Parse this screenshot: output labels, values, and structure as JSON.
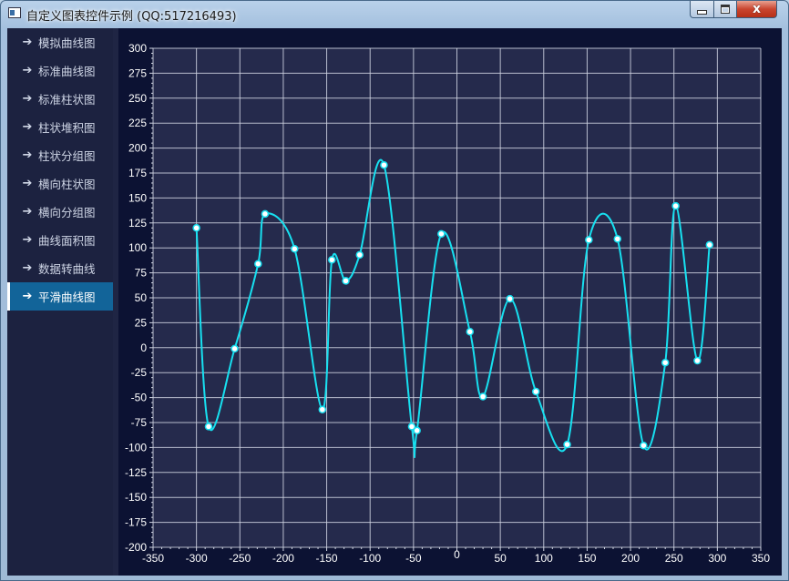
{
  "window": {
    "title": "自定义图表控件示例 (QQ:517216493)",
    "close_label": "x",
    "app_icon": "window-app-icon"
  },
  "sidebar": {
    "items": [
      {
        "label": "模拟曲线图",
        "icon": "arrow-right-icon",
        "active": false
      },
      {
        "label": "标准曲线图",
        "icon": "arrow-right-icon",
        "active": false
      },
      {
        "label": "标准柱状图",
        "icon": "arrow-right-icon",
        "active": false
      },
      {
        "label": "柱状堆积图",
        "icon": "arrow-right-icon",
        "active": false
      },
      {
        "label": "柱状分组图",
        "icon": "arrow-right-icon",
        "active": false
      },
      {
        "label": "横向柱状图",
        "icon": "arrow-right-icon",
        "active": false
      },
      {
        "label": "横向分组图",
        "icon": "arrow-right-icon",
        "active": false
      },
      {
        "label": "曲线面积图",
        "icon": "arrow-right-icon",
        "active": false
      },
      {
        "label": "数据转曲线",
        "icon": "arrow-right-icon",
        "active": false
      },
      {
        "label": "平滑曲线图",
        "icon": "arrow-right-icon",
        "active": true
      }
    ]
  },
  "colors": {
    "plot_bg": "#252a4c",
    "frame_bg": "#0c1233",
    "grid": "#d2d6e4",
    "line": "#17e0f0",
    "point": "#ffffff",
    "tick_text": "#ffffff",
    "active_nav": "#126499"
  },
  "chart_data": {
    "type": "line",
    "title": "",
    "xlabel": "",
    "ylabel": "",
    "xlim": [
      -350,
      350
    ],
    "ylim": [
      -200,
      300
    ],
    "x_ticks": [
      -350,
      -300,
      -250,
      -200,
      -150,
      -100,
      -50,
      0,
      50,
      100,
      150,
      200,
      250,
      300,
      350
    ],
    "y_ticks": [
      -200,
      -175,
      -150,
      -125,
      -100,
      -75,
      -50,
      -25,
      0,
      25,
      50,
      75,
      100,
      125,
      150,
      175,
      200,
      225,
      250,
      275,
      300
    ],
    "grid": true,
    "smooth": true,
    "series": [
      {
        "points": [
          [
            -300,
            120
          ],
          [
            -286,
            -79
          ],
          [
            -256,
            -1
          ],
          [
            -229,
            84
          ],
          [
            -221,
            134
          ],
          [
            -187,
            99
          ],
          [
            -155,
            -62
          ],
          [
            -144,
            88
          ],
          [
            -128,
            67
          ],
          [
            -112,
            93
          ],
          [
            -84,
            183
          ],
          [
            -52,
            -79
          ],
          [
            -46,
            -83
          ],
          [
            -18,
            114
          ],
          [
            15,
            16
          ],
          [
            30,
            -49
          ],
          [
            61,
            49
          ],
          [
            91,
            -44
          ],
          [
            127,
            -97
          ],
          [
            152,
            108
          ],
          [
            185,
            109
          ],
          [
            215,
            -98
          ],
          [
            240,
            -15
          ],
          [
            252,
            142
          ],
          [
            277,
            -13
          ],
          [
            291,
            103
          ]
        ]
      }
    ]
  }
}
